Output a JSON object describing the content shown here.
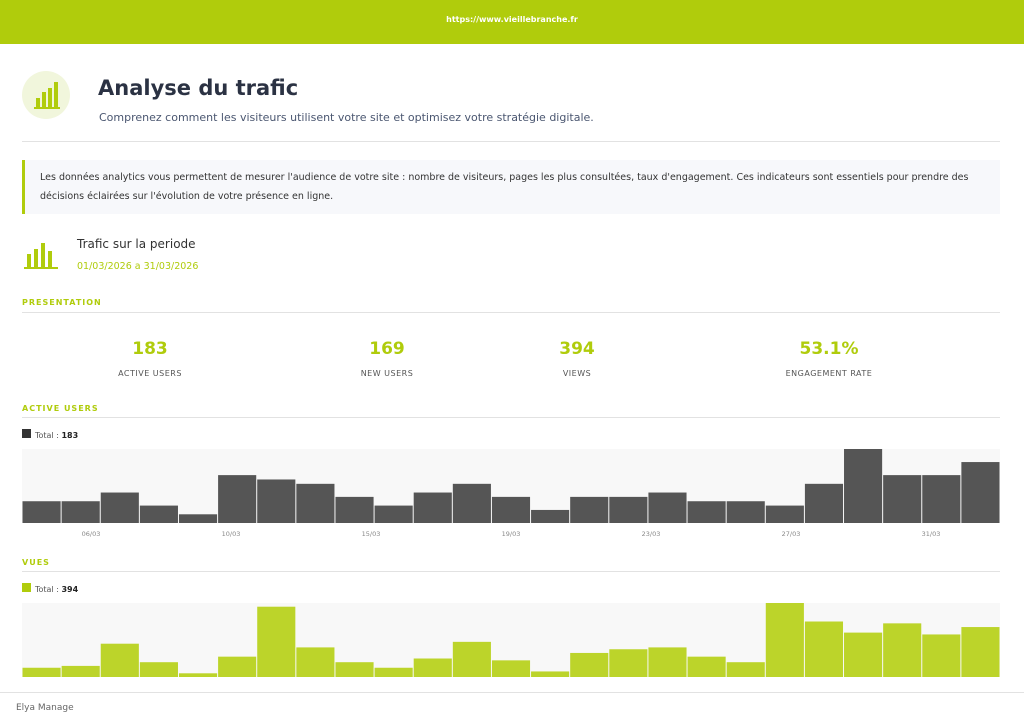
{
  "header": {
    "url": "https://www.vieillebranche.fr",
    "title": "Analyse du trafic",
    "subtitle": "Comprenez comment les visiteurs utilisent votre site et optimisez votre stratégie digitale."
  },
  "info": "Les données analytics vous permettent de mesurer l'audience de votre site : nombre de visiteurs, pages les plus consultées, taux d'engagement. Ces indicateurs sont essentiels pour prendre des décisions éclairées sur l'évolution de votre présence en ligne.",
  "period": {
    "label": "Trafic sur la periode",
    "dates": "01/03/2026 a 31/03/2026"
  },
  "presentation": {
    "title": "PRESENTATION",
    "stats": [
      {
        "value": 183,
        "label": "ACTIVE USERS"
      },
      {
        "value": 169,
        "label": "NEW USERS"
      },
      {
        "value": 394,
        "label": "VIEWS"
      },
      {
        "value": "53.1%",
        "label": "ENGAGEMENT RATE"
      }
    ]
  },
  "charts": [
    {
      "title": "ACTIVE USERS",
      "legend": "Total :",
      "total": 183,
      "color": "#555555",
      "legend_color": "#333333",
      "values": [
        5,
        5,
        7,
        4,
        2,
        11,
        10,
        9,
        6,
        4,
        7,
        9,
        6,
        3,
        6,
        6,
        7,
        5,
        5,
        4,
        9,
        17,
        11,
        11,
        14
      ],
      "xtick_labels": [
        "06/03",
        "10/03",
        "15/03",
        "19/03",
        "23/03",
        "27/03",
        "31/03"
      ]
    },
    {
      "title": "VUES",
      "legend": "Total :",
      "total": 394,
      "color": "#bcd42a",
      "legend_color": "#b0cc0c",
      "values": [
        5,
        6,
        18,
        8,
        2,
        11,
        38,
        16,
        8,
        5,
        10,
        19,
        9,
        3,
        13,
        15,
        16,
        11,
        8,
        40,
        30,
        24,
        29,
        23,
        27
      ]
    }
  ],
  "footer": "Elya Manage"
}
